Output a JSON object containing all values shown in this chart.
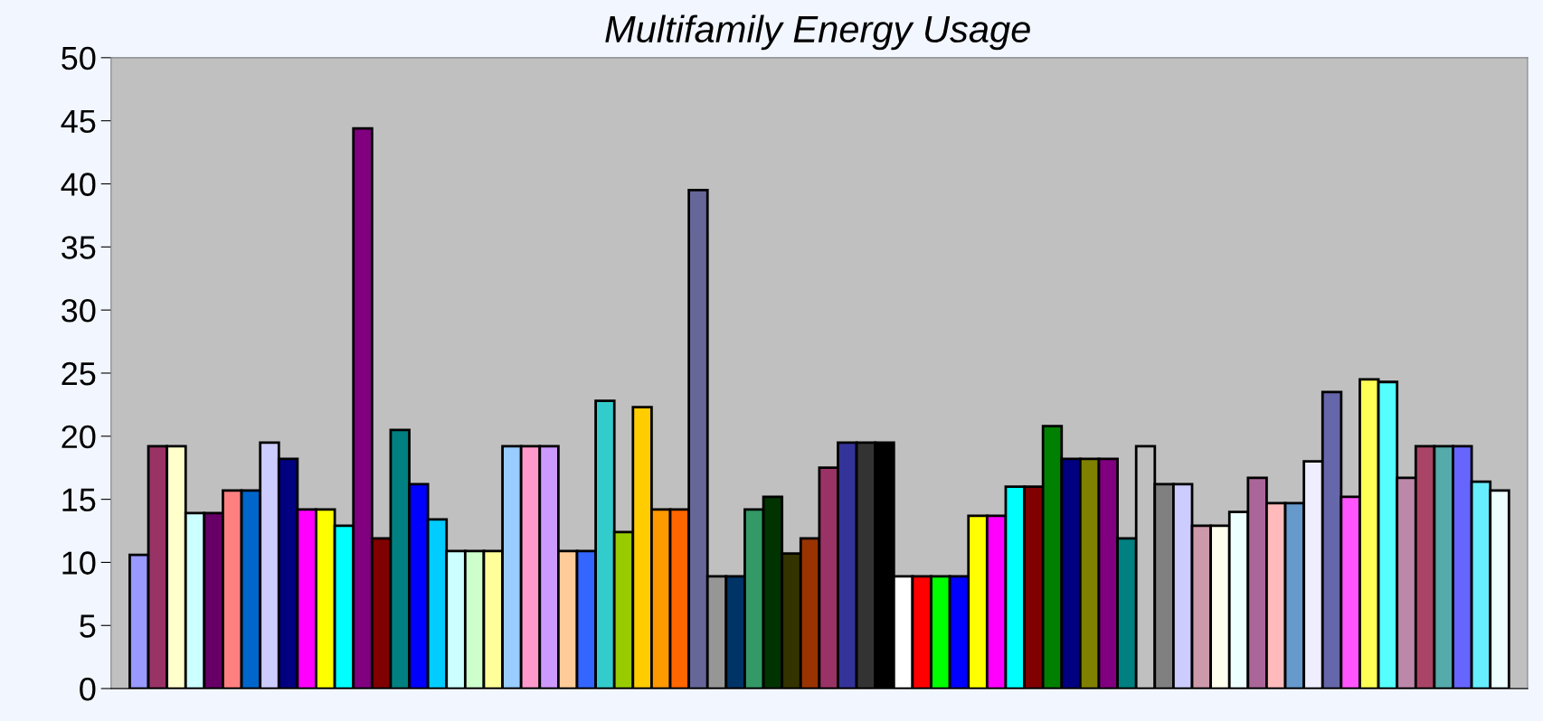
{
  "chart_data": {
    "type": "bar",
    "title": "Multifamily Energy Usage",
    "categories": [
      null,
      null,
      null,
      null,
      null,
      null,
      null,
      null,
      null,
      null,
      null,
      null,
      null,
      null,
      null,
      null,
      null,
      null,
      null,
      null,
      null,
      null,
      null,
      null,
      null,
      null,
      null,
      null,
      null,
      null,
      null,
      null,
      null,
      null,
      null,
      null,
      null,
      null,
      null,
      null,
      null,
      null,
      null,
      null,
      null,
      null,
      null,
      null,
      null,
      null,
      null,
      null,
      null,
      null,
      null,
      null,
      null,
      null,
      null,
      null,
      null,
      null,
      null,
      null,
      null,
      null,
      null,
      null,
      null,
      null,
      null,
      null,
      null,
      null
    ],
    "values": [
      10.6,
      19.2,
      19.2,
      13.9,
      13.9,
      15.7,
      15.7,
      19.5,
      18.2,
      14.2,
      14.2,
      12.9,
      44.4,
      11.9,
      20.5,
      16.2,
      13.4,
      10.9,
      10.9,
      10.9,
      19.2,
      19.2,
      19.2,
      10.9,
      10.9,
      22.8,
      12.4,
      22.3,
      14.2,
      14.2,
      39.5,
      8.9,
      8.9,
      14.2,
      15.2,
      10.7,
      11.9,
      17.5,
      19.5,
      19.5,
      19.5,
      8.9,
      8.9,
      8.9,
      8.9,
      13.7,
      13.7,
      16.0,
      16.0,
      20.8,
      18.2,
      18.2,
      18.2,
      11.9,
      19.2,
      16.2,
      16.2,
      12.9,
      12.9,
      14.0,
      16.7,
      14.7,
      14.7,
      18.0,
      23.5,
      15.2,
      24.5,
      24.3,
      16.7,
      19.2,
      19.2,
      19.2,
      16.4,
      15.7
    ],
    "colors": [
      "#9999ff",
      "#993366",
      "#ffffcc",
      "#ccffff",
      "#660066",
      "#ff8080",
      "#0066cc",
      "#ccccff",
      "#000080",
      "#ff00ff",
      "#ffff00",
      "#00ffff",
      "#800080",
      "#800000",
      "#008080",
      "#0000ff",
      "#00ccff",
      "#ccffff",
      "#ccffcc",
      "#ffff99",
      "#99ccff",
      "#ff99cc",
      "#cc99ff",
      "#ffcc99",
      "#3366ff",
      "#33cccc",
      "#99cc00",
      "#ffcc00",
      "#ff9900",
      "#ff6600",
      "#666699",
      "#969696",
      "#003366",
      "#339966",
      "#003300",
      "#333300",
      "#993300",
      "#993366",
      "#333399",
      "#333333",
      "#000000",
      "#ffffff",
      "#ff0000",
      "#00ff00",
      "#0000ff",
      "#ffff00",
      "#ff00ff",
      "#00ffff",
      "#800000",
      "#008000",
      "#000080",
      "#808000",
      "#800080",
      "#008080",
      "#c0c0c0",
      "#808080",
      "#ccccff",
      "#cc99aa",
      "#ffffee",
      "#eeffff",
      "#aa6699",
      "#ffbbbb",
      "#6699cc",
      "#eeeeff",
      "#6666aa",
      "#ff55ff",
      "#ffff55",
      "#55ffff",
      "#bb88aa",
      "#aa4466",
      "#55aaaa",
      "#6666ff",
      "#66eeff",
      "#eeffff"
    ],
    "ylim": [
      0,
      50
    ],
    "yticks": [
      0,
      5,
      10,
      15,
      20,
      25,
      30,
      35,
      40,
      45,
      50
    ],
    "grid": false,
    "legend": false
  }
}
